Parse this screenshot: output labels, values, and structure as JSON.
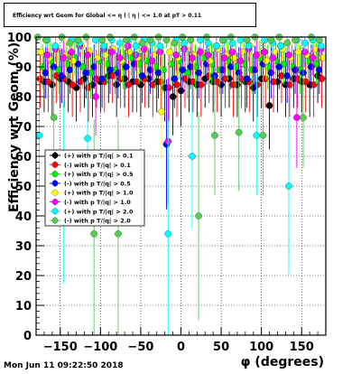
{
  "title": "Efficiency wrt Geom for Global <= η ( | η | <= 1.0 at pT > 0.11",
  "timestamp": "Mon Jun 11 09:22:50 2018",
  "chart_data": {
    "type": "scatter",
    "xlabel": "φ (degrees)",
    "ylabel": "Efficiency wrt Geom (%)",
    "xlim": [
      -180,
      180
    ],
    "ylim": [
      0,
      100
    ],
    "xticks": [
      -150,
      -100,
      -50,
      0,
      50,
      100,
      150
    ],
    "yticks": [
      0,
      10,
      20,
      30,
      40,
      50,
      60,
      70,
      80,
      90,
      100
    ],
    "grid": true,
    "legend_position": "left-middle",
    "series": [
      {
        "name": "(+) with p T/|q| > 0.1",
        "color": "#000000",
        "marker": "circle",
        "x": [
          -170,
          -160,
          -150,
          -140,
          -130,
          -120,
          -110,
          -100,
          -90,
          -80,
          -70,
          -60,
          -50,
          -40,
          -30,
          -20,
          -10,
          0,
          10,
          20,
          30,
          40,
          50,
          60,
          70,
          80,
          90,
          100,
          110,
          120,
          130,
          140,
          150,
          160,
          170
        ],
        "y": [
          85,
          84,
          86,
          85,
          83,
          86,
          84,
          85,
          87,
          84,
          86,
          85,
          84,
          86,
          85,
          83,
          80,
          82,
          85,
          84,
          86,
          85,
          84,
          86,
          84,
          85,
          83,
          86,
          77,
          85,
          84,
          86,
          85,
          84,
          87
        ]
      },
      {
        "name": "(-) with p T/|q| > 0.1",
        "color": "#ff0000",
        "marker": "circle",
        "x": [
          -175,
          -165,
          -155,
          -145,
          -135,
          -125,
          -115,
          -105,
          -95,
          -85,
          -75,
          -65,
          -55,
          -45,
          -35,
          -25,
          -15,
          -5,
          5,
          15,
          25,
          35,
          45,
          55,
          65,
          75,
          85,
          95,
          105,
          115,
          125,
          135,
          145,
          155,
          165,
          175
        ],
        "y": [
          86,
          85,
          87,
          86,
          84,
          85,
          83,
          86,
          85,
          87,
          86,
          84,
          85,
          86,
          84,
          85,
          83,
          84,
          86,
          85,
          84,
          87,
          85,
          86,
          84,
          86,
          85,
          84,
          86,
          85,
          87,
          84,
          86,
          85,
          84,
          86
        ]
      },
      {
        "name": "(+) with p T/|q| > 0.5",
        "color": "#00ee00",
        "marker": "circle",
        "x": [
          -172,
          -162,
          -152,
          -142,
          -132,
          -122,
          -112,
          -102,
          -92,
          -82,
          -72,
          -62,
          -52,
          -42,
          -32,
          -22,
          -12,
          -2,
          8,
          18,
          28,
          38,
          48,
          58,
          68,
          78,
          88,
          98,
          108,
          118,
          128,
          138,
          148,
          158,
          168
        ],
        "y": [
          90,
          92,
          89,
          91,
          93,
          90,
          88,
          92,
          91,
          89,
          90,
          93,
          91,
          92,
          90,
          89,
          91,
          92,
          88,
          90,
          93,
          91,
          89,
          92,
          90,
          91,
          89,
          93,
          90,
          92,
          91,
          90,
          89,
          92,
          91
        ]
      },
      {
        "name": "(-) with p T/|q| > 0.5",
        "color": "#0000ff",
        "marker": "circle",
        "x": [
          -168,
          -158,
          -148,
          -138,
          -128,
          -118,
          -108,
          -98,
          -88,
          -78,
          -68,
          -58,
          -48,
          -38,
          -28,
          -18,
          -8,
          2,
          12,
          22,
          32,
          42,
          52,
          62,
          72,
          82,
          92,
          102,
          112,
          122,
          132,
          142,
          152,
          162,
          172
        ],
        "y": [
          88,
          90,
          87,
          89,
          91,
          88,
          90,
          86,
          89,
          88,
          90,
          91,
          87,
          89,
          88,
          64,
          86,
          89,
          90,
          88,
          91,
          87,
          89,
          90,
          88,
          86,
          89,
          91,
          88,
          90,
          87,
          89,
          88,
          90,
          89
        ]
      },
      {
        "name": "(+) with p T/|q| > 1.0",
        "color": "#ffff00",
        "marker": "circle",
        "x": [
          -174,
          -164,
          -154,
          -144,
          -134,
          -124,
          -114,
          -104,
          -94,
          -84,
          -74,
          -64,
          -54,
          -44,
          -34,
          -24,
          -14,
          -4,
          6,
          16,
          26,
          36,
          46,
          56,
          66,
          76,
          86,
          96,
          106,
          116,
          126,
          136,
          146,
          156,
          166,
          176
        ],
        "y": [
          95,
          93,
          96,
          94,
          92,
          97,
          95,
          93,
          94,
          96,
          92,
          95,
          93,
          96,
          94,
          75,
          95,
          93,
          96,
          94,
          95,
          92,
          96,
          94,
          93,
          95,
          97,
          94,
          92,
          95,
          96,
          93,
          95,
          94,
          96,
          93
        ]
      },
      {
        "name": "(-) with p T/|q| > 1.0",
        "color": "#ff00ff",
        "marker": "circle",
        "x": [
          -166,
          -156,
          -146,
          -136,
          -126,
          -116,
          -106,
          -96,
          -86,
          -76,
          -66,
          -56,
          -46,
          -36,
          -26,
          -16,
          -6,
          4,
          14,
          24,
          34,
          44,
          54,
          64,
          74,
          84,
          94,
          104,
          114,
          124,
          134,
          144,
          154,
          164,
          174
        ],
        "y": [
          94,
          96,
          93,
          95,
          97,
          94,
          80,
          96,
          95,
          93,
          97,
          94,
          96,
          92,
          95,
          65,
          94,
          96,
          93,
          95,
          94,
          97,
          93,
          95,
          92,
          96,
          94,
          95,
          93,
          97,
          94,
          73,
          95,
          93,
          96
        ]
      },
      {
        "name": "(+) with p T/|q| > 2.0",
        "color": "#00ffff",
        "marker": "circle",
        "x": [
          -176,
          -166,
          -156,
          -146,
          -136,
          -126,
          -116,
          -106,
          -96,
          -86,
          -76,
          -66,
          -56,
          -46,
          -36,
          -26,
          -16,
          -6,
          4,
          14,
          24,
          34,
          44,
          54,
          64,
          74,
          84,
          94,
          104,
          114,
          124,
          134,
          144,
          154,
          164,
          174
        ],
        "y": [
          67,
          99,
          97,
          48,
          99,
          98,
          66,
          99,
          97,
          99,
          98,
          99,
          97,
          99,
          98,
          97,
          34,
          99,
          98,
          60,
          99,
          98,
          97,
          99,
          98,
          99,
          97,
          67,
          99,
          98,
          97,
          50,
          99,
          98,
          99,
          97
        ]
      },
      {
        "name": "(-) with p T/|q| > 2.0",
        "color": "#55cc55",
        "marker": "circle",
        "x": [
          -178,
          -168,
          -158,
          -148,
          -138,
          -128,
          -118,
          -108,
          -98,
          -88,
          -78,
          -68,
          -58,
          -48,
          -38,
          -28,
          -18,
          -8,
          2,
          12,
          22,
          32,
          42,
          52,
          62,
          72,
          82,
          92,
          102,
          112,
          122,
          132,
          142,
          152,
          162,
          172
        ],
        "y": [
          100,
          99,
          73,
          100,
          98,
          99,
          100,
          34,
          99,
          100,
          34,
          99,
          100,
          98,
          99,
          100,
          99,
          98,
          100,
          99,
          40,
          100,
          67,
          99,
          100,
          68,
          99,
          100,
          67,
          99,
          100,
          98,
          99,
          73,
          100,
          99
        ]
      }
    ]
  }
}
